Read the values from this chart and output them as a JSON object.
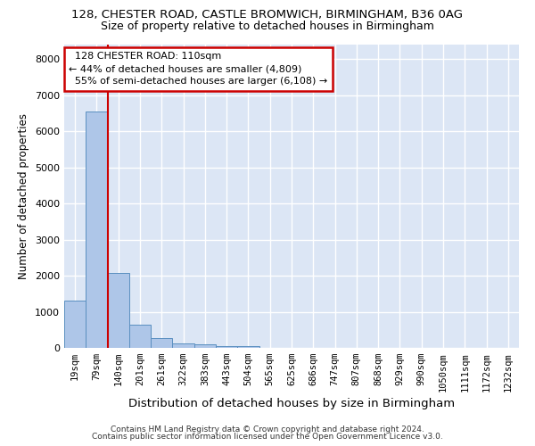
{
  "title_line1": "128, CHESTER ROAD, CASTLE BROMWICH, BIRMINGHAM, B36 0AG",
  "title_line2": "Size of property relative to detached houses in Birmingham",
  "xlabel": "Distribution of detached houses by size in Birmingham",
  "ylabel": "Number of detached properties",
  "footer_line1": "Contains HM Land Registry data © Crown copyright and database right 2024.",
  "footer_line2": "Contains public sector information licensed under the Open Government Licence v3.0.",
  "bin_labels": [
    "19sqm",
    "79sqm",
    "140sqm",
    "201sqm",
    "261sqm",
    "322sqm",
    "383sqm",
    "443sqm",
    "504sqm",
    "565sqm",
    "625sqm",
    "686sqm",
    "747sqm",
    "807sqm",
    "868sqm",
    "929sqm",
    "990sqm",
    "1050sqm",
    "1111sqm",
    "1172sqm",
    "1232sqm"
  ],
  "bar_values": [
    1300,
    6550,
    2070,
    640,
    280,
    130,
    100,
    60,
    60,
    0,
    0,
    0,
    0,
    0,
    0,
    0,
    0,
    0,
    0,
    0,
    0
  ],
  "bar_color": "#aec6e8",
  "bar_edge_color": "#5a8fc0",
  "property_label": "128 CHESTER ROAD: 110sqm",
  "pct_smaller": 44,
  "n_smaller": 4809,
  "pct_larger_semi": 55,
  "n_larger_semi": 6108,
  "vline_color": "#cc0000",
  "vline_x": 1.5,
  "annotation_box_color": "#cc0000",
  "background_color": "#dce6f5",
  "grid_color": "#ffffff",
  "ylim": [
    0,
    8400
  ],
  "yticks": [
    0,
    1000,
    2000,
    3000,
    4000,
    5000,
    6000,
    7000,
    8000
  ]
}
